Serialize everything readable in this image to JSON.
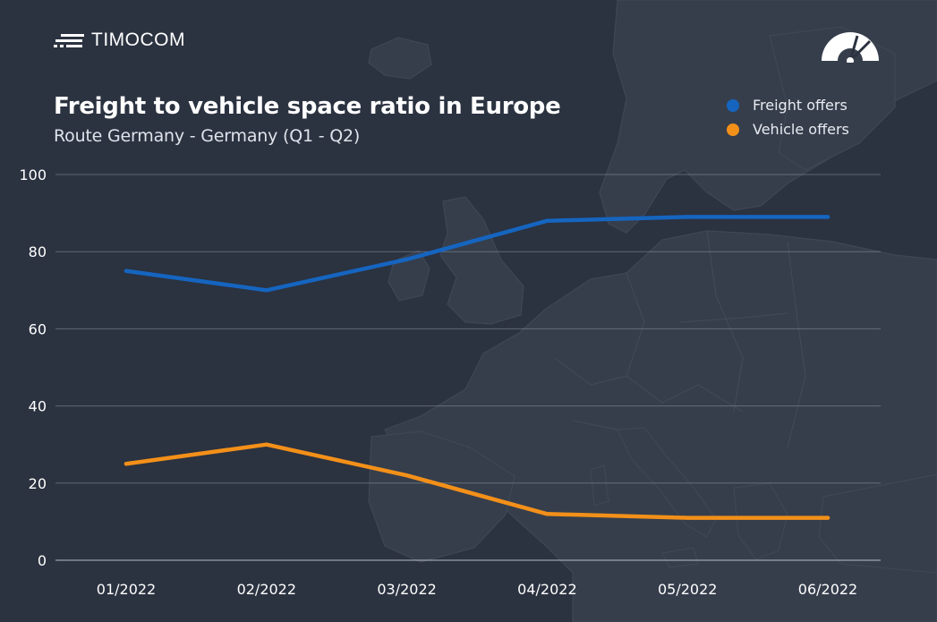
{
  "brand": {
    "name": "TIMOCOM"
  },
  "legend": {
    "items": [
      {
        "label": "Freight offers",
        "color": "#1565c0"
      },
      {
        "label": "Vehicle offers",
        "color": "#f39019"
      }
    ]
  },
  "colors": {
    "background": "#2b3240",
    "grid": "#8a93a3",
    "map": "#363e4c"
  },
  "chart_data": {
    "type": "line",
    "title": "Freight to vehicle space ratio in Europe",
    "subtitle": "Route Germany - Germany (Q1 - Q2)",
    "categories": [
      "01/2022",
      "02/2022",
      "03/2022",
      "04/2022",
      "05/2022",
      "06/2022"
    ],
    "series": [
      {
        "name": "Freight offers",
        "color": "#1565c0",
        "values": [
          75,
          70,
          78,
          88,
          89,
          89
        ]
      },
      {
        "name": "Vehicle offers",
        "color": "#f39019",
        "values": [
          25,
          30,
          22,
          12,
          11,
          11
        ]
      }
    ],
    "ylim": [
      0,
      100
    ],
    "yticks": [
      0,
      20,
      40,
      60,
      80,
      100
    ],
    "xlabel": "",
    "ylabel": "",
    "grid": true,
    "legend_position": "top-right"
  }
}
